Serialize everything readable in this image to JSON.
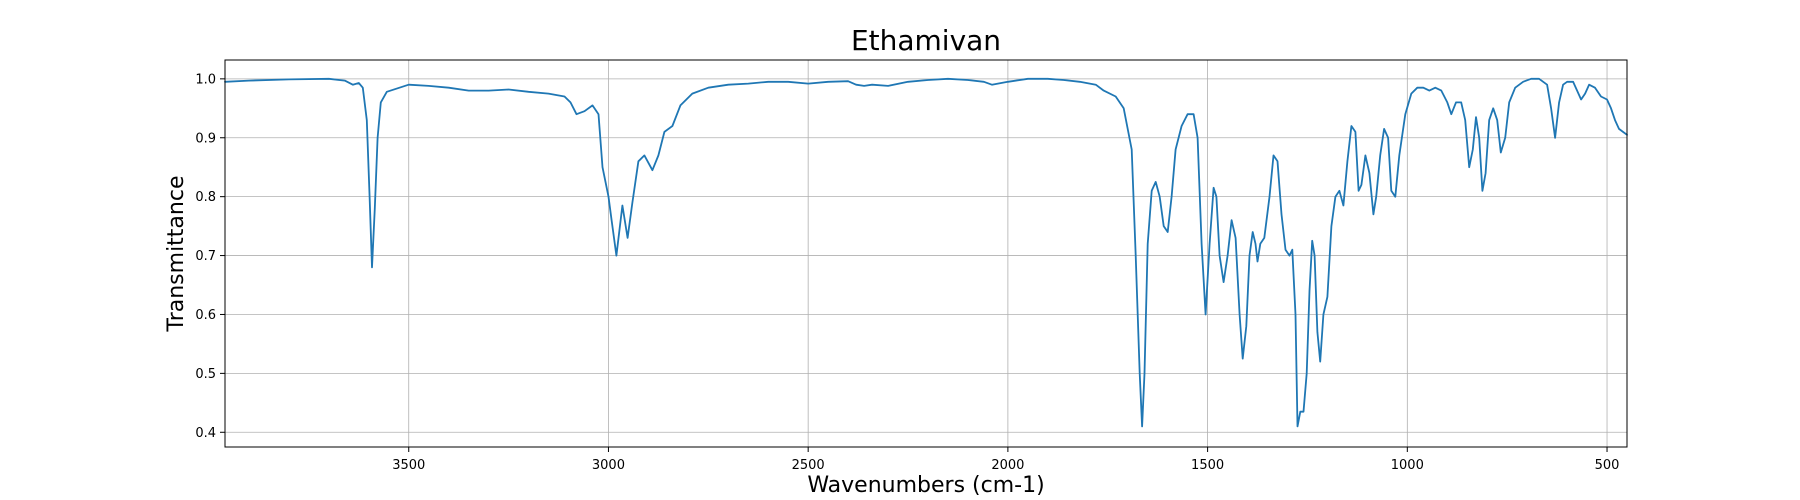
{
  "chart_data": {
    "type": "line",
    "title": "Ethamivan",
    "xlabel": "Wavenumbers (cm-1)",
    "ylabel": "Transmittance",
    "xlim": [
      3960,
      450
    ],
    "ylim": [
      0.375,
      1.032
    ],
    "x_inverted": true,
    "grid": true,
    "x_ticks": [
      3500,
      3000,
      2500,
      2000,
      1500,
      1000,
      500
    ],
    "y_ticks": [
      0.4,
      0.5,
      0.6,
      0.7,
      0.8,
      0.9,
      1.0
    ],
    "y_tick_labels": [
      "0.4",
      "0.5",
      "0.6",
      "0.7",
      "0.8",
      "0.9",
      "1.0"
    ],
    "series": [
      {
        "name": "Ethamivan",
        "color": "#1f77b4",
        "points": [
          [
            3960,
            0.995
          ],
          [
            3900,
            0.997
          ],
          [
            3800,
            0.999
          ],
          [
            3700,
            1.0
          ],
          [
            3660,
            0.997
          ],
          [
            3640,
            0.99
          ],
          [
            3625,
            0.993
          ],
          [
            3615,
            0.985
          ],
          [
            3605,
            0.93
          ],
          [
            3598,
            0.8
          ],
          [
            3592,
            0.68
          ],
          [
            3585,
            0.78
          ],
          [
            3578,
            0.9
          ],
          [
            3570,
            0.96
          ],
          [
            3555,
            0.978
          ],
          [
            3500,
            0.99
          ],
          [
            3450,
            0.988
          ],
          [
            3400,
            0.985
          ],
          [
            3350,
            0.98
          ],
          [
            3300,
            0.98
          ],
          [
            3250,
            0.982
          ],
          [
            3200,
            0.978
          ],
          [
            3150,
            0.975
          ],
          [
            3110,
            0.97
          ],
          [
            3095,
            0.96
          ],
          [
            3080,
            0.94
          ],
          [
            3060,
            0.945
          ],
          [
            3040,
            0.955
          ],
          [
            3025,
            0.94
          ],
          [
            3015,
            0.85
          ],
          [
            3000,
            0.8
          ],
          [
            2992,
            0.76
          ],
          [
            2980,
            0.7
          ],
          [
            2965,
            0.785
          ],
          [
            2952,
            0.73
          ],
          [
            2940,
            0.79
          ],
          [
            2925,
            0.86
          ],
          [
            2910,
            0.87
          ],
          [
            2890,
            0.845
          ],
          [
            2875,
            0.87
          ],
          [
            2860,
            0.91
          ],
          [
            2840,
            0.92
          ],
          [
            2820,
            0.955
          ],
          [
            2790,
            0.975
          ],
          [
            2750,
            0.985
          ],
          [
            2700,
            0.99
          ],
          [
            2650,
            0.992
          ],
          [
            2600,
            0.995
          ],
          [
            2550,
            0.995
          ],
          [
            2500,
            0.992
          ],
          [
            2450,
            0.995
          ],
          [
            2400,
            0.996
          ],
          [
            2380,
            0.99
          ],
          [
            2360,
            0.988
          ],
          [
            2340,
            0.99
          ],
          [
            2300,
            0.988
          ],
          [
            2250,
            0.995
          ],
          [
            2200,
            0.998
          ],
          [
            2150,
            1.0
          ],
          [
            2100,
            0.998
          ],
          [
            2060,
            0.995
          ],
          [
            2040,
            0.99
          ],
          [
            2000,
            0.995
          ],
          [
            1950,
            1.0
          ],
          [
            1900,
            1.0
          ],
          [
            1860,
            0.998
          ],
          [
            1820,
            0.995
          ],
          [
            1780,
            0.99
          ],
          [
            1760,
            0.98
          ],
          [
            1730,
            0.97
          ],
          [
            1710,
            0.95
          ],
          [
            1690,
            0.88
          ],
          [
            1680,
            0.7
          ],
          [
            1670,
            0.5
          ],
          [
            1664,
            0.41
          ],
          [
            1658,
            0.5
          ],
          [
            1650,
            0.72
          ],
          [
            1640,
            0.81
          ],
          [
            1630,
            0.825
          ],
          [
            1620,
            0.8
          ],
          [
            1610,
            0.75
          ],
          [
            1600,
            0.74
          ],
          [
            1590,
            0.8
          ],
          [
            1580,
            0.88
          ],
          [
            1565,
            0.92
          ],
          [
            1550,
            0.94
          ],
          [
            1535,
            0.94
          ],
          [
            1525,
            0.9
          ],
          [
            1515,
            0.72
          ],
          [
            1505,
            0.6
          ],
          [
            1495,
            0.72
          ],
          [
            1485,
            0.815
          ],
          [
            1478,
            0.8
          ],
          [
            1470,
            0.7
          ],
          [
            1460,
            0.655
          ],
          [
            1450,
            0.7
          ],
          [
            1440,
            0.76
          ],
          [
            1430,
            0.73
          ],
          [
            1420,
            0.6
          ],
          [
            1412,
            0.525
          ],
          [
            1403,
            0.58
          ],
          [
            1395,
            0.7
          ],
          [
            1387,
            0.74
          ],
          [
            1380,
            0.72
          ],
          [
            1375,
            0.69
          ],
          [
            1368,
            0.72
          ],
          [
            1358,
            0.73
          ],
          [
            1345,
            0.8
          ],
          [
            1335,
            0.87
          ],
          [
            1325,
            0.86
          ],
          [
            1315,
            0.77
          ],
          [
            1305,
            0.71
          ],
          [
            1295,
            0.7
          ],
          [
            1288,
            0.71
          ],
          [
            1280,
            0.6
          ],
          [
            1275,
            0.41
          ],
          [
            1268,
            0.435
          ],
          [
            1260,
            0.435
          ],
          [
            1252,
            0.5
          ],
          [
            1245,
            0.64
          ],
          [
            1238,
            0.725
          ],
          [
            1232,
            0.7
          ],
          [
            1225,
            0.57
          ],
          [
            1218,
            0.52
          ],
          [
            1210,
            0.6
          ],
          [
            1200,
            0.63
          ],
          [
            1190,
            0.75
          ],
          [
            1180,
            0.8
          ],
          [
            1170,
            0.81
          ],
          [
            1160,
            0.785
          ],
          [
            1150,
            0.86
          ],
          [
            1140,
            0.92
          ],
          [
            1130,
            0.91
          ],
          [
            1122,
            0.81
          ],
          [
            1115,
            0.82
          ],
          [
            1105,
            0.87
          ],
          [
            1095,
            0.84
          ],
          [
            1085,
            0.77
          ],
          [
            1078,
            0.8
          ],
          [
            1068,
            0.87
          ],
          [
            1058,
            0.915
          ],
          [
            1048,
            0.9
          ],
          [
            1040,
            0.81
          ],
          [
            1030,
            0.8
          ],
          [
            1020,
            0.87
          ],
          [
            1005,
            0.94
          ],
          [
            990,
            0.975
          ],
          [
            975,
            0.985
          ],
          [
            960,
            0.985
          ],
          [
            945,
            0.98
          ],
          [
            930,
            0.985
          ],
          [
            915,
            0.98
          ],
          [
            900,
            0.96
          ],
          [
            890,
            0.94
          ],
          [
            878,
            0.96
          ],
          [
            865,
            0.96
          ],
          [
            855,
            0.93
          ],
          [
            845,
            0.85
          ],
          [
            836,
            0.88
          ],
          [
            828,
            0.935
          ],
          [
            820,
            0.9
          ],
          [
            812,
            0.81
          ],
          [
            804,
            0.84
          ],
          [
            795,
            0.93
          ],
          [
            785,
            0.95
          ],
          [
            775,
            0.93
          ],
          [
            766,
            0.875
          ],
          [
            755,
            0.9
          ],
          [
            745,
            0.96
          ],
          [
            730,
            0.985
          ],
          [
            710,
            0.995
          ],
          [
            690,
            1.0
          ],
          [
            670,
            1.0
          ],
          [
            650,
            0.99
          ],
          [
            640,
            0.95
          ],
          [
            630,
            0.9
          ],
          [
            620,
            0.96
          ],
          [
            610,
            0.99
          ],
          [
            600,
            0.995
          ],
          [
            585,
            0.995
          ],
          [
            575,
            0.98
          ],
          [
            565,
            0.965
          ],
          [
            555,
            0.975
          ],
          [
            545,
            0.99
          ],
          [
            530,
            0.985
          ],
          [
            515,
            0.97
          ],
          [
            500,
            0.965
          ],
          [
            490,
            0.95
          ],
          [
            480,
            0.93
          ],
          [
            470,
            0.915
          ],
          [
            460,
            0.91
          ],
          [
            450,
            0.905
          ]
        ]
      }
    ]
  }
}
